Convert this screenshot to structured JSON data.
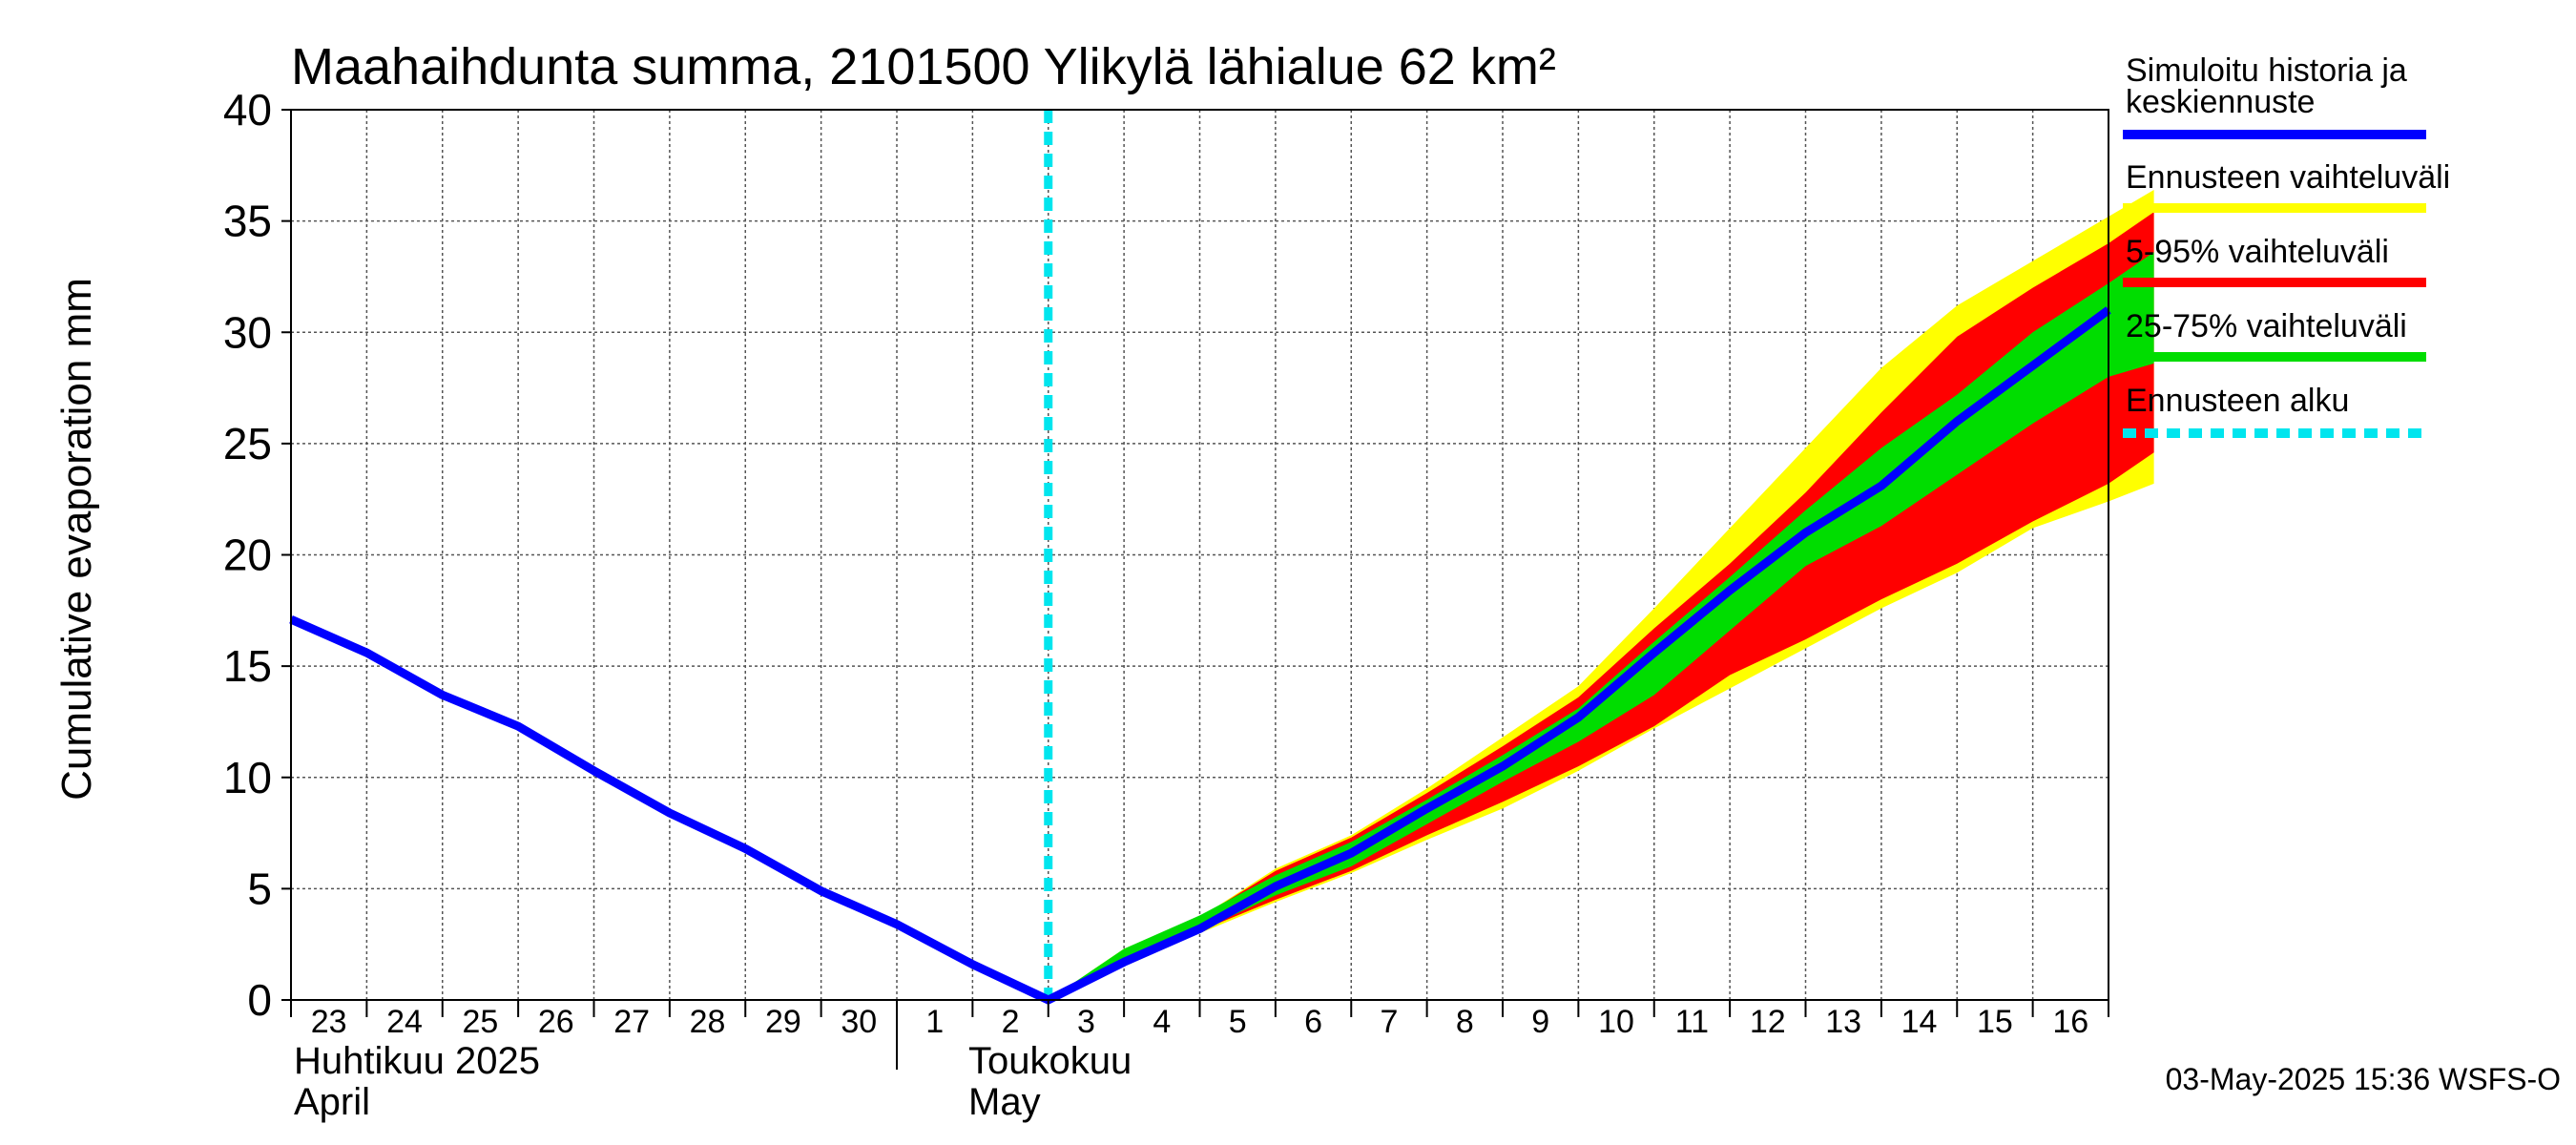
{
  "chart_data": {
    "type": "area",
    "title": "Maahaihdunta summa, 2101500 Ylikylä lähialue 62 km²",
    "ylabel": "Cumulative evaporation   mm",
    "xlabel": "",
    "ylim": [
      0,
      40
    ],
    "yticks": [
      "0",
      "5",
      "10",
      "15",
      "20",
      "25",
      "30",
      "35",
      "40"
    ],
    "x_days": [
      "23",
      "24",
      "25",
      "26",
      "27",
      "28",
      "29",
      "30",
      "1",
      "2",
      "3",
      "4",
      "5",
      "6",
      "7",
      "8",
      "9",
      "10",
      "11",
      "12",
      "13",
      "14",
      "15",
      "16"
    ],
    "months": [
      {
        "line1": "Huhtikuu  2025",
        "line2": "April"
      },
      {
        "line1": "Toukokuu",
        "line2": "May"
      }
    ],
    "grid": true,
    "forecast_start": "2025-05-03",
    "history": {
      "name": "Simuloitu historia ja keskiennuste",
      "points": [
        [
          "2025-04-23",
          17.1
        ],
        [
          "2025-04-24",
          15.6
        ],
        [
          "2025-04-25",
          13.7
        ],
        [
          "2025-04-26",
          12.3
        ],
        [
          "2025-04-27",
          10.3
        ],
        [
          "2025-04-28",
          8.4
        ],
        [
          "2025-04-29",
          6.8
        ],
        [
          "2025-04-30",
          4.9
        ],
        [
          "2025-05-01",
          3.4
        ],
        [
          "2025-05-02",
          1.6
        ],
        [
          "2025-05-03",
          0.0
        ],
        [
          "2025-05-04",
          1.7
        ],
        [
          "2025-05-05",
          3.2
        ],
        [
          "2025-05-06",
          5.1
        ],
        [
          "2025-05-07",
          6.6
        ],
        [
          "2025-05-08",
          8.6
        ],
        [
          "2025-05-09",
          10.5
        ],
        [
          "2025-05-10",
          12.7
        ],
        [
          "2025-05-11",
          15.6
        ],
        [
          "2025-05-12",
          18.4
        ],
        [
          "2025-05-13",
          21.0
        ],
        [
          "2025-05-14",
          23.1
        ],
        [
          "2025-05-15",
          26.0
        ],
        [
          "2025-05-16",
          28.5
        ],
        [
          "2025-05-17",
          31.0
        ]
      ]
    },
    "bands": [
      {
        "name": "Ennusteen vaihteluväli",
        "color": "#ffff00",
        "x": [
          "2025-05-03",
          "2025-05-04",
          "2025-05-05",
          "2025-05-06",
          "2025-05-07",
          "2025-05-08",
          "2025-05-09",
          "2025-05-10",
          "2025-05-11",
          "2025-05-12",
          "2025-05-13",
          "2025-05-14",
          "2025-05-15",
          "2025-05-16",
          "2025-05-17",
          "2025-05-17.6"
        ],
        "low": [
          0.0,
          1.5,
          3.0,
          4.4,
          5.7,
          7.2,
          8.6,
          10.3,
          12.2,
          14.0,
          15.8,
          17.6,
          19.2,
          21.2,
          22.4,
          23.2
        ],
        "high": [
          0.0,
          2.3,
          3.7,
          5.9,
          7.4,
          9.5,
          11.8,
          14.1,
          17.6,
          21.2,
          24.8,
          28.4,
          31.2,
          33.2,
          35.2,
          36.4
        ]
      },
      {
        "name": "5-95% vaihteluväli",
        "color": "#ff0000",
        "x": [
          "2025-05-03",
          "2025-05-04",
          "2025-05-05",
          "2025-05-06",
          "2025-05-07",
          "2025-05-08",
          "2025-05-09",
          "2025-05-10",
          "2025-05-11",
          "2025-05-12",
          "2025-05-13",
          "2025-05-14",
          "2025-05-15",
          "2025-05-16",
          "2025-05-17",
          "2025-05-17.6"
        ],
        "low": [
          0.0,
          1.6,
          3.1,
          4.5,
          5.8,
          7.4,
          8.9,
          10.5,
          12.3,
          14.6,
          16.2,
          18.0,
          19.6,
          21.5,
          23.2,
          24.6
        ],
        "high": [
          0.0,
          2.2,
          3.7,
          5.8,
          7.3,
          9.3,
          11.4,
          13.6,
          16.7,
          19.6,
          22.8,
          26.4,
          29.8,
          32.0,
          34.0,
          35.4
        ]
      },
      {
        "name": "25-75% vaihteluväli",
        "color": "#00dd00",
        "x": [
          "2025-05-03",
          "2025-05-04",
          "2025-05-05",
          "2025-05-06",
          "2025-05-07",
          "2025-05-08",
          "2025-05-09",
          "2025-05-10",
          "2025-05-11",
          "2025-05-12",
          "2025-05-13",
          "2025-05-14",
          "2025-05-15",
          "2025-05-16",
          "2025-05-17",
          "2025-05-17.6"
        ],
        "low": [
          0.0,
          1.6,
          3.1,
          4.7,
          6.0,
          7.9,
          9.8,
          11.6,
          13.7,
          16.6,
          19.5,
          21.3,
          23.6,
          25.9,
          28.0,
          28.6
        ],
        "high": [
          0.0,
          2.3,
          3.8,
          5.6,
          7.1,
          9.0,
          11.0,
          13.1,
          16.1,
          19.0,
          22.0,
          24.8,
          27.2,
          30.0,
          32.2,
          33.6
        ]
      }
    ],
    "legend": [
      {
        "label": "Simuloitu historia ja keskiennuste",
        "line1": "Simuloitu historia ja",
        "line2": "keskiennuste",
        "color": "#0000ff",
        "style": "solid"
      },
      {
        "label": "Ennusteen vaihteluväli",
        "color": "#ffff00",
        "style": "solid"
      },
      {
        "label": "5-95% vaihteluväli",
        "color": "#ff0000",
        "style": "solid"
      },
      {
        "label": "25-75% vaihteluväli",
        "color": "#00dd00",
        "style": "solid"
      },
      {
        "label": "Ennusteen alku",
        "color": "#00e5ee",
        "style": "dashed"
      }
    ],
    "legend_placement": "right",
    "footer": "03-May-2025 15:36 WSFS-O"
  }
}
